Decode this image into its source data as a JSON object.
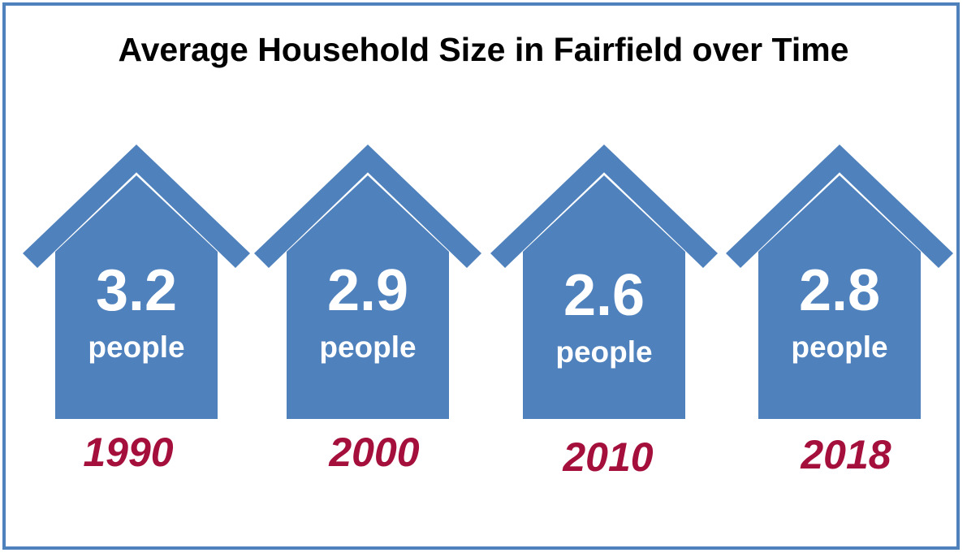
{
  "chart_data": {
    "type": "bar",
    "title": "Average Household Size in Fairfield over Time",
    "categories": [
      "1990",
      "2000",
      "2010",
      "2018"
    ],
    "values": [
      3.2,
      2.9,
      2.6,
      2.8
    ],
    "value_labels": [
      "3.2",
      "2.9",
      "2.6",
      "2.8"
    ],
    "unit": "people",
    "xlabel": "",
    "ylabel": "",
    "colors": {
      "house": "#4f81bd",
      "frame": "#4f81bd",
      "year_text": "#a50f3c",
      "value_text": "#ffffff",
      "title_text": "#000000"
    }
  }
}
